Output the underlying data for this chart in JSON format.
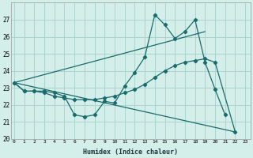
{
  "xlabel": "Humidex (Indice chaleur)",
  "x_ticks": [
    0,
    1,
    2,
    3,
    4,
    5,
    6,
    7,
    8,
    9,
    10,
    11,
    12,
    13,
    14,
    15,
    16,
    17,
    18,
    19,
    20,
    21,
    22,
    23
  ],
  "ylim": [
    20,
    28
  ],
  "xlim": [
    -0.3,
    23.5
  ],
  "yticks": [
    20,
    21,
    22,
    23,
    24,
    25,
    26,
    27
  ],
  "background_color": "#d4eeea",
  "grid_color": "#aad4ce",
  "line_color": "#1a6b6b",
  "series": [
    {
      "x": [
        0,
        1,
        2,
        3,
        4,
        5,
        6,
        7,
        8,
        9,
        10,
        11,
        12,
        13,
        14,
        15,
        16,
        17,
        18,
        19,
        20,
        21
      ],
      "y": [
        23.3,
        22.8,
        22.8,
        22.8,
        22.7,
        22.5,
        21.4,
        21.3,
        21.4,
        22.2,
        22.1,
        23.1,
        23.9,
        24.8,
        27.3,
        26.7,
        25.9,
        26.3,
        27.0,
        24.5,
        22.9,
        21.4
      ]
    },
    {
      "x": [
        0,
        1,
        2,
        3,
        4,
        5,
        6,
        7,
        8,
        9,
        10,
        11,
        12,
        13,
        14,
        15,
        16,
        17,
        18,
        19,
        20,
        22
      ],
      "y": [
        23.3,
        22.8,
        22.8,
        22.7,
        22.5,
        22.4,
        22.3,
        22.3,
        22.3,
        22.4,
        22.5,
        22.7,
        22.9,
        23.2,
        23.6,
        24.0,
        24.3,
        24.5,
        24.6,
        24.7,
        24.5,
        20.4
      ]
    },
    {
      "x": [
        0,
        19
      ],
      "y": [
        23.3,
        26.3
      ]
    },
    {
      "x": [
        0,
        22
      ],
      "y": [
        23.3,
        20.4
      ]
    }
  ]
}
